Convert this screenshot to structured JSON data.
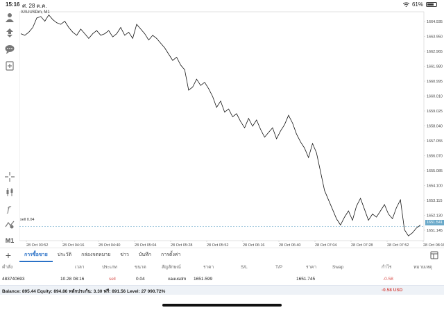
{
  "status": {
    "time": "15:16",
    "date": "ศ. 28 ต.ค.",
    "battery": "61%",
    "battery_level": 0.61
  },
  "chart": {
    "symbol_label": "XAUUSDm, M1",
    "sell_label": "sell 0.04",
    "current_price_tag": "1651.541",
    "y_ticks": [
      "1664.935",
      "1663.950",
      "1662.965",
      "1661.980",
      "1660.995",
      "1660.010",
      "1659.025",
      "1658.040",
      "1657.055",
      "1656.070",
      "1655.085",
      "1654.100",
      "1653.115",
      "1652.130",
      "1651.145"
    ],
    "x_ticks": [
      "28 Oct 03:52",
      "28 Oct 04:16",
      "28 Oct 04:40",
      "28 Oct 05:04",
      "28 Oct 05:28",
      "28 Oct 05:52",
      "28 Oct 06:16",
      "28 Oct 06:40",
      "28 Oct 07:04",
      "28 Oct 07:28",
      "28 Oct 07:52",
      "28 Oct 08:16"
    ]
  },
  "chart_data": {
    "type": "line",
    "ylim": [
      1650.7,
      1665.3
    ],
    "sell_level": 1651.599,
    "values": [
      1663.9,
      1663.8,
      1664.0,
      1664.3,
      1664.9,
      1665.0,
      1664.7,
      1665.1,
      1664.8,
      1664.6,
      1664.5,
      1664.7,
      1664.3,
      1664.0,
      1663.8,
      1664.2,
      1663.9,
      1663.6,
      1663.9,
      1664.1,
      1663.8,
      1663.9,
      1664.1,
      1663.7,
      1663.9,
      1664.3,
      1663.8,
      1664.0,
      1663.6,
      1664.5,
      1664.2,
      1663.9,
      1663.5,
      1663.8,
      1663.6,
      1663.3,
      1663.0,
      1662.6,
      1662.2,
      1662.4,
      1661.9,
      1661.6,
      1660.3,
      1660.5,
      1661.0,
      1660.6,
      1660.8,
      1660.4,
      1659.9,
      1659.2,
      1659.6,
      1658.9,
      1659.1,
      1658.6,
      1658.8,
      1658.3,
      1657.9,
      1658.5,
      1658.0,
      1658.4,
      1657.8,
      1657.3,
      1657.6,
      1657.9,
      1657.2,
      1657.7,
      1658.1,
      1658.7,
      1658.2,
      1657.5,
      1657.0,
      1656.6,
      1656.0,
      1656.9,
      1656.3,
      1655.1,
      1653.9,
      1653.3,
      1652.7,
      1652.1,
      1651.7,
      1652.2,
      1652.6,
      1652.0,
      1652.9,
      1653.4,
      1652.7,
      1652.0,
      1652.4,
      1652.2,
      1652.6,
      1653.0,
      1652.4,
      1652.1,
      1652.8,
      1653.3,
      1651.4,
      1651.0,
      1651.2,
      1651.5,
      1651.7
    ]
  },
  "tabs": [
    "การซื้อขาย",
    "ประวัติ",
    "กล่องจดหมาย",
    "ข่าว",
    "บันทึก",
    "การตั้งค่า"
  ],
  "table": {
    "headers": [
      "คำสั่ง",
      "เวลา",
      "ประเภท",
      "ขนาด",
      "สัญลักษณ์",
      "ราคา",
      "S/L",
      "T/P",
      "ราคา",
      "Swap",
      "กำไร",
      "หมายเหตุ"
    ],
    "row": {
      "order": "483740693",
      "time": "10.28 08:16",
      "type": "sell",
      "volume": "0.04",
      "symbol": "xauusdm",
      "open_price": "1651.599",
      "sl": "",
      "tp": "",
      "current_price": "1651.745",
      "swap": "",
      "profit": "-0.58",
      "comment": ""
    }
  },
  "balance": {
    "text": "Balance: 895.44 Equity: 894.86 หลักประกัน: 3.30 ฟรี: 891.56 Level: 27 090.72%",
    "profit": "-0.58  USD"
  },
  "toolbar": {
    "timeframe": "M1"
  }
}
